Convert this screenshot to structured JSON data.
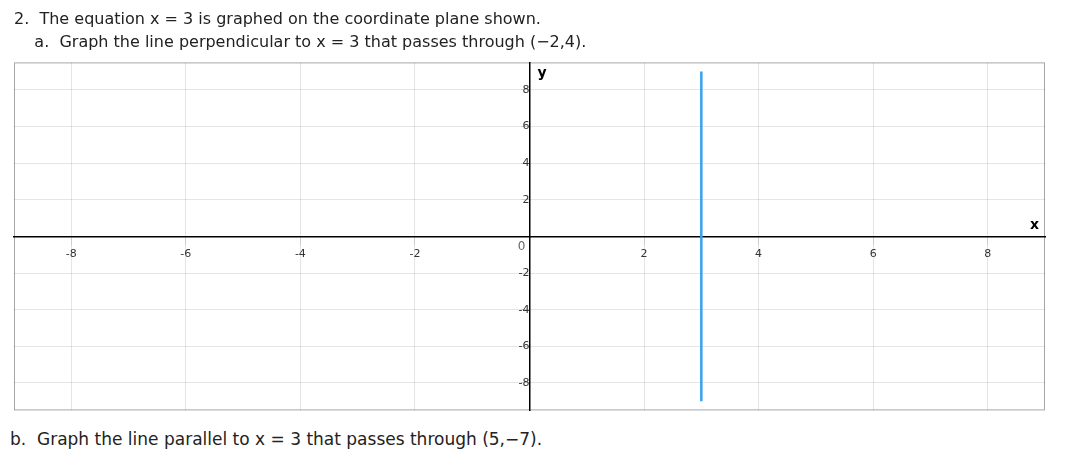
{
  "chart_data": {
    "type": "line",
    "title": "2.  The equation x = 3 is graphed on the coordinate plane shown.",
    "subtitle": "    a.  Graph the line perpendicular to x = 3 that passes through (−2,4).",
    "xlabel": "x",
    "ylabel": "y",
    "x": [
      3,
      3
    ],
    "values": [
      -9,
      9
    ],
    "xlim": [
      -9,
      9
    ],
    "ylim": [
      -9.5,
      9.5
    ],
    "xticks": [
      -8,
      -6,
      -4,
      -2,
      2,
      4,
      6,
      8
    ],
    "yticks": [
      -8,
      -6,
      -4,
      -2,
      2,
      4,
      6,
      8
    ],
    "grid": true,
    "annotations": [
      {
        "text": "0",
        "x": 0,
        "y": 0
      },
      {
        "text": "b.  Graph the line parallel to x = 3 that passes through (5,−7)."
      }
    ]
  }
}
